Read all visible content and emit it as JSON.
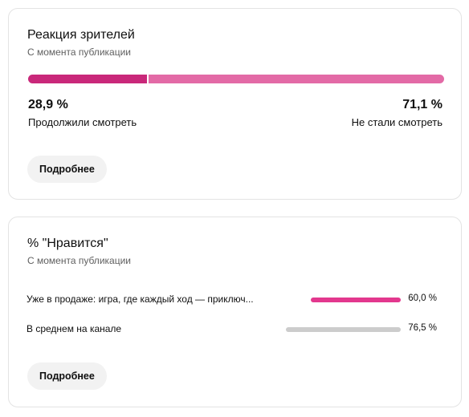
{
  "reaction_card": {
    "title": "Реакция зрителей",
    "subtitle": "С момента публикации",
    "stayed": {
      "value": "28,9 %",
      "label": "Продолжили смотреть",
      "fraction": 0.289,
      "color": "#c9287a"
    },
    "left": {
      "value": "71,1 %",
      "label": "Не стали смотреть",
      "fraction": 0.711,
      "color": "#e36aa6"
    },
    "more_button": "Подробнее"
  },
  "likes_card": {
    "title": "% \"Нравится\"",
    "subtitle": "С момента публикации",
    "rows": [
      {
        "label": "Уже в продаже: игра, где каждый ход — приключ...",
        "value": "60,0 %",
        "percent": 60.0,
        "color": "#e3388e"
      },
      {
        "label": "В среднем на канале",
        "value": "76,5 %",
        "percent": 76.5,
        "color": "#cccccc"
      }
    ],
    "more_button": "Подробнее"
  }
}
